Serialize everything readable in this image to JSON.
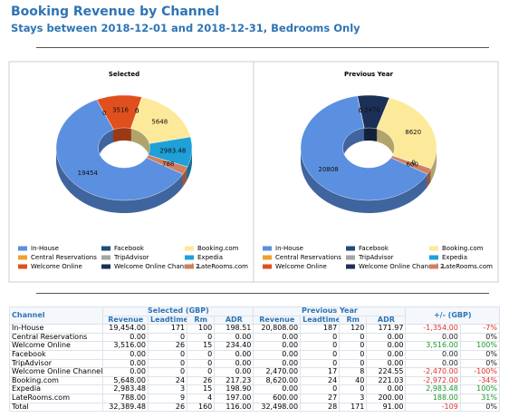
{
  "header": {
    "title": "Booking Revenue by Channel",
    "subtitle": "Stays between 2018-12-01 and 2018-12-31, Bedrooms Only"
  },
  "chart_data": [
    {
      "type": "pie",
      "title": "Selected",
      "categories": [
        "In-House",
        "Central Reservations",
        "Welcome Online",
        "Facebook",
        "TripAdvisor",
        "Welcome Online Channel 2",
        "Booking.com",
        "Expedia",
        "LateRooms.com"
      ],
      "values": [
        19454,
        0,
        3516,
        0,
        0,
        0,
        5648,
        2983.48,
        788
      ],
      "colors": [
        "#5b8fe0",
        "#f0a030",
        "#e0501e",
        "#1f4e79",
        "#a6a6a6",
        "#1b2f57",
        "#fde99a",
        "#1fa0d8",
        "#d08060"
      ]
    },
    {
      "type": "pie",
      "title": "Previous Year",
      "categories": [
        "In-House",
        "Central Reservations",
        "Welcome Online",
        "Facebook",
        "TripAdvisor",
        "Welcome Online Channel 2",
        "Booking.com",
        "Expedia",
        "LateRooms.com"
      ],
      "values": [
        20808,
        0,
        0,
        0,
        0,
        2470,
        8620,
        0,
        600
      ],
      "colors": [
        "#5b8fe0",
        "#f0a030",
        "#e0501e",
        "#1f4e79",
        "#a6a6a6",
        "#1b2f57",
        "#fde99a",
        "#1fa0d8",
        "#d08060"
      ]
    }
  ],
  "table": {
    "columns": [
      "Channel",
      "Selected (GBP)",
      "Previous Year",
      "+/- (GBP)"
    ],
    "subcolumns": [
      "Revenue",
      "Leadtime",
      "Rm",
      "ADR"
    ],
    "rows": [
      [
        "In-House",
        "19,454.00",
        "171",
        "100",
        "198.51",
        "20,808.00",
        "187",
        "120",
        "171.97",
        "-1,354.00",
        "-7%"
      ],
      [
        "Central Reservations",
        "0.00",
        "0",
        "0",
        "0.00",
        "0.00",
        "0",
        "0",
        "0.00",
        "0.00",
        "0%"
      ],
      [
        "Welcome Online",
        "3,516.00",
        "26",
        "15",
        "234.40",
        "0.00",
        "0",
        "0",
        "0.00",
        "3,516.00",
        "100%"
      ],
      [
        "Facebook",
        "0.00",
        "0",
        "0",
        "0.00",
        "0.00",
        "0",
        "0",
        "0.00",
        "0.00",
        "0%"
      ],
      [
        "TripAdvisor",
        "0.00",
        "0",
        "0",
        "0.00",
        "0.00",
        "0",
        "0",
        "0.00",
        "0.00",
        "0%"
      ],
      [
        "Welcome Online Channel 2",
        "0.00",
        "0",
        "0",
        "0.00",
        "2,470.00",
        "17",
        "8",
        "224.55",
        "-2,470.00",
        "-100%"
      ],
      [
        "Booking.com",
        "5,648.00",
        "24",
        "26",
        "217.23",
        "8,620.00",
        "24",
        "40",
        "221.03",
        "-2,972.00",
        "-34%"
      ],
      [
        "Expedia",
        "2,983.48",
        "3",
        "15",
        "198.90",
        "0.00",
        "0",
        "0",
        "0.00",
        "2,983.48",
        "100%"
      ],
      [
        "LateRooms.com",
        "788.00",
        "9",
        "4",
        "197.00",
        "600.00",
        "27",
        "3",
        "200.00",
        "188.00",
        "31%"
      ],
      [
        "Total",
        "32,389.48",
        "26",
        "160",
        "116.00",
        "32,498.00",
        "28",
        "171",
        "91.00",
        "-109",
        "0%"
      ]
    ]
  }
}
